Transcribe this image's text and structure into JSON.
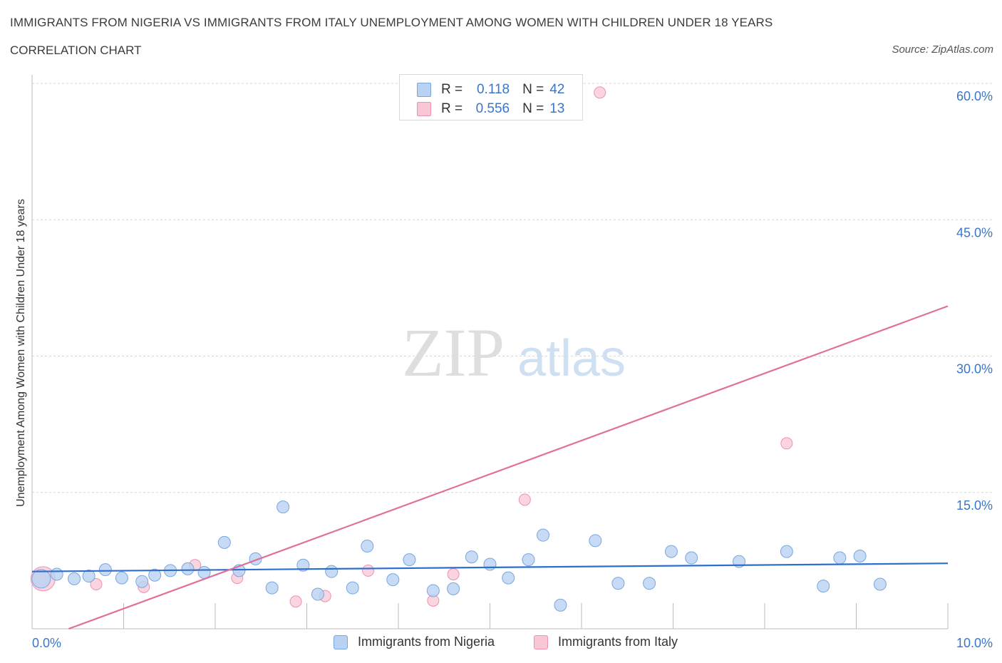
{
  "header": {
    "title": "IMMIGRANTS FROM NIGERIA VS IMMIGRANTS FROM ITALY UNEMPLOYMENT AMONG WOMEN WITH CHILDREN UNDER 18 YEARS",
    "subtitle": "CORRELATION CHART",
    "source": "Source: ZipAtlas.com"
  },
  "watermark": {
    "zip": "ZIP",
    "atlas": "atlas"
  },
  "legend": {
    "nigeria": {
      "r_label": "R =",
      "r_value": "0.118",
      "n_label": "N =",
      "n_value": "42"
    },
    "italy": {
      "r_label": "R =",
      "r_value": "0.556",
      "n_label": "N =",
      "n_value": "13"
    }
  },
  "bottom_legend": {
    "nigeria": "Immigrants from Nigeria",
    "italy": "Immigrants from Italy"
  },
  "colors": {
    "nigeria_fill": "#b9d2f3",
    "nigeria_stroke": "#7aa6e0",
    "nigeria_line": "#2f6fcc",
    "italy_fill": "#f8c6d4",
    "italy_stroke": "#ec92ad",
    "italy_line": "#e0709a",
    "axis_text": "#3a76c8",
    "grid": "#d6d6d6"
  },
  "chart_data": {
    "type": "scatter",
    "ylabel": "Unemployment Among Women with Children Under 18 years",
    "xlim": [
      0,
      10
    ],
    "ylim": [
      0,
      60
    ],
    "x_tick_labels": [
      "0.0%",
      "10.0%"
    ],
    "y_ticks": [
      15,
      30,
      45,
      60
    ],
    "y_tick_labels": [
      "15.0%",
      "30.0%",
      "45.0%",
      "60.0%"
    ],
    "grid": true,
    "legend_position": "top-center",
    "series": [
      {
        "name": "Immigrants from Nigeria",
        "r": 0.118,
        "n": 42,
        "points": [
          [
            0.1,
            5.5
          ],
          [
            0.27,
            6.0
          ],
          [
            0.46,
            5.5
          ],
          [
            0.62,
            5.8
          ],
          [
            0.8,
            6.5
          ],
          [
            0.98,
            5.6
          ],
          [
            1.2,
            5.2
          ],
          [
            1.34,
            5.9
          ],
          [
            1.51,
            6.4
          ],
          [
            1.7,
            6.6
          ],
          [
            1.88,
            6.2
          ],
          [
            2.1,
            9.5
          ],
          [
            2.26,
            6.4
          ],
          [
            2.44,
            7.7
          ],
          [
            2.62,
            4.5
          ],
          [
            2.74,
            13.4
          ],
          [
            2.96,
            7.0
          ],
          [
            3.12,
            3.8
          ],
          [
            3.27,
            6.3
          ],
          [
            3.5,
            4.5
          ],
          [
            3.66,
            9.1
          ],
          [
            3.94,
            5.4
          ],
          [
            4.12,
            7.6
          ],
          [
            4.38,
            4.2
          ],
          [
            4.6,
            4.4
          ],
          [
            4.8,
            7.9
          ],
          [
            5.0,
            7.1
          ],
          [
            5.2,
            5.6
          ],
          [
            5.42,
            7.6
          ],
          [
            5.58,
            10.3
          ],
          [
            5.77,
            2.6
          ],
          [
            6.15,
            9.7
          ],
          [
            6.4,
            5.0
          ],
          [
            6.74,
            5.0
          ],
          [
            6.98,
            8.5
          ],
          [
            7.2,
            7.8
          ],
          [
            7.72,
            7.4
          ],
          [
            8.24,
            8.5
          ],
          [
            8.64,
            4.7
          ],
          [
            8.82,
            7.8
          ],
          [
            9.04,
            8.0
          ],
          [
            9.26,
            4.9
          ]
        ],
        "trend": [
          [
            0,
            6.3
          ],
          [
            10,
            7.2
          ]
        ]
      },
      {
        "name": "Immigrants from Italy",
        "r": 0.556,
        "n": 13,
        "points": [
          [
            0.12,
            5.5
          ],
          [
            0.7,
            4.9
          ],
          [
            1.22,
            4.6
          ],
          [
            1.78,
            7.0
          ],
          [
            2.24,
            5.6
          ],
          [
            2.88,
            3.0
          ],
          [
            3.2,
            3.6
          ],
          [
            3.67,
            6.4
          ],
          [
            4.38,
            3.1
          ],
          [
            4.6,
            6.0
          ],
          [
            5.38,
            14.2
          ],
          [
            6.2,
            59.0
          ],
          [
            8.24,
            20.4
          ]
        ],
        "trend": [
          [
            0.4,
            0
          ],
          [
            10,
            35.5
          ]
        ]
      }
    ]
  }
}
